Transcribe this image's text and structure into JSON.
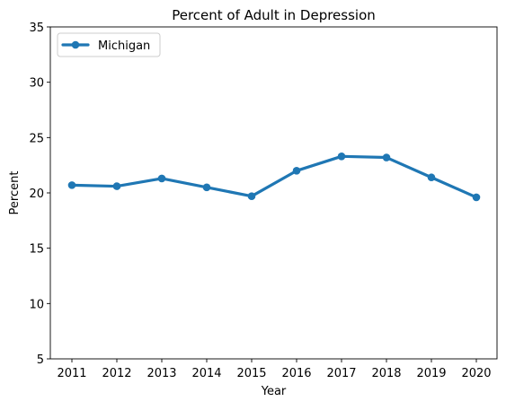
{
  "chart_data": {
    "type": "line",
    "title": "Percent of Adult in Depression",
    "xlabel": "Year",
    "ylabel": "Percent",
    "x": [
      2011,
      2012,
      2013,
      2014,
      2015,
      2016,
      2017,
      2018,
      2019,
      2020
    ],
    "x_tick_labels": [
      "2011",
      "2012",
      "2013",
      "2014",
      "2015",
      "2016",
      "2017",
      "2018",
      "2019",
      "2020"
    ],
    "y_ticks": [
      5,
      10,
      15,
      20,
      25,
      30,
      35
    ],
    "y_tick_labels": [
      "5",
      "10",
      "15",
      "20",
      "25",
      "30",
      "35"
    ],
    "ylim": [
      5,
      35
    ],
    "grid": false,
    "legend_position": "upper-left",
    "series": [
      {
        "name": "Michigan",
        "color": "#1f77b4",
        "marker": "circle",
        "values": [
          20.7,
          20.6,
          21.3,
          20.5,
          19.7,
          22.0,
          23.3,
          23.2,
          21.4,
          19.6
        ]
      }
    ]
  }
}
